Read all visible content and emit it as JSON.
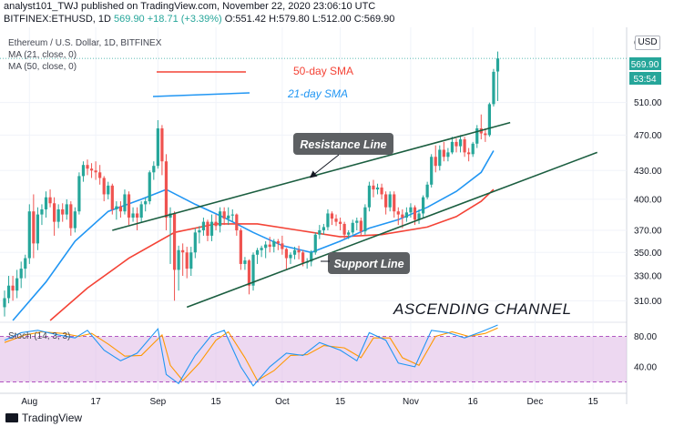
{
  "header": {
    "line1": "analyst101_TWJ published on TradingView.com, November 22, 2020 23:06:10 UTC",
    "symbol": "BITFINEX:ETHUSD, 1D",
    "last": "569.90",
    "change": "+18.71 (+3.39%)",
    "open": "O:551.42",
    "high": "H:579.80",
    "low": "L:512.00",
    "close": "C:569.90"
  },
  "legend": {
    "title": "Ethereum / U.S. Dollar, 1D, BITFINEX",
    "ma21": "MA (21, close, 0)",
    "ma50": "MA (50, close, 0)",
    "sma50_label": "50-day SMA",
    "sma21_label": "21-day SMA"
  },
  "annotations": {
    "resistance": "Resistance Line",
    "support": "Support Line",
    "channel": "ASCENDING CHANNEL"
  },
  "price_badge": {
    "price": "569.90",
    "countdown": "53:54",
    "currency": "USD"
  },
  "footer": {
    "brand": "TradingView"
  },
  "colors": {
    "up": "#26a69a",
    "down": "#ef5350",
    "sma21": "#2196f3",
    "sma50": "#f44336",
    "channel": "#1b5e40",
    "stoch_k": "#2196f3",
    "stoch_d": "#ff9800",
    "stoch_band": "#e1bee7"
  },
  "chart_data": [
    {
      "type": "candlestick",
      "title": "Ethereum / U.S. Dollar, 1D, BITFINEX",
      "y_scale": "log",
      "ylim": [
        295,
        605
      ],
      "y_ticks": [
        310,
        330,
        350,
        370,
        400,
        430,
        470,
        510
      ],
      "x_ticks": [
        "Aug",
        "17",
        "Sep",
        "15",
        "Oct",
        "15",
        "Nov",
        "16",
        "Dec",
        "15"
      ],
      "x_tick_dates": [
        "2020-08-01",
        "2020-08-17",
        "2020-09-01",
        "2020-09-15",
        "2020-10-01",
        "2020-10-15",
        "2020-11-01",
        "2020-11-16",
        "2020-12-01",
        "2020-12-15"
      ],
      "x_range": [
        "2020-07-26",
        "2020-12-22"
      ],
      "grid": true,
      "ohlc": [
        [
          "2020-07-26",
          305,
          318,
          298,
          312
        ],
        [
          "2020-07-27",
          312,
          330,
          308,
          322
        ],
        [
          "2020-07-28",
          322,
          330,
          310,
          318
        ],
        [
          "2020-07-29",
          318,
          335,
          312,
          328
        ],
        [
          "2020-07-30",
          328,
          342,
          320,
          336
        ],
        [
          "2020-07-31",
          336,
          348,
          328,
          345
        ],
        [
          "2020-08-01",
          345,
          395,
          340,
          388
        ],
        [
          "2020-08-02",
          388,
          405,
          345,
          358
        ],
        [
          "2020-08-03",
          358,
          392,
          352,
          385
        ],
        [
          "2020-08-04",
          385,
          395,
          375,
          390
        ],
        [
          "2020-08-05",
          390,
          408,
          382,
          402
        ],
        [
          "2020-08-06",
          402,
          410,
          392,
          396
        ],
        [
          "2020-08-07",
          396,
          402,
          365,
          378
        ],
        [
          "2020-08-08",
          378,
          395,
          372,
          390
        ],
        [
          "2020-08-09",
          390,
          396,
          378,
          385
        ],
        [
          "2020-08-10",
          385,
          400,
          380,
          395
        ],
        [
          "2020-08-11",
          395,
          398,
          365,
          372
        ],
        [
          "2020-08-12",
          372,
          392,
          368,
          388
        ],
        [
          "2020-08-13",
          388,
          428,
          385,
          424
        ],
        [
          "2020-08-14",
          424,
          440,
          418,
          436
        ],
        [
          "2020-08-15",
          436,
          442,
          425,
          432
        ],
        [
          "2020-08-16",
          432,
          438,
          422,
          430
        ],
        [
          "2020-08-17",
          430,
          440,
          420,
          428
        ],
        [
          "2020-08-18",
          428,
          436,
          415,
          422
        ],
        [
          "2020-08-19",
          422,
          424,
          398,
          405
        ],
        [
          "2020-08-20",
          405,
          418,
          400,
          414
        ],
        [
          "2020-08-21",
          414,
          416,
          385,
          390
        ],
        [
          "2020-08-22",
          390,
          398,
          380,
          393
        ],
        [
          "2020-08-23",
          393,
          398,
          382,
          388
        ],
        [
          "2020-08-24",
          388,
          410,
          385,
          405
        ],
        [
          "2020-08-25",
          405,
          408,
          375,
          382
        ],
        [
          "2020-08-26",
          382,
          392,
          378,
          386
        ],
        [
          "2020-08-27",
          386,
          392,
          370,
          382
        ],
        [
          "2020-08-28",
          382,
          398,
          378,
          395
        ],
        [
          "2020-08-29",
          395,
          402,
          388,
          398
        ],
        [
          "2020-08-30",
          398,
          430,
          395,
          428
        ],
        [
          "2020-08-31",
          428,
          440,
          420,
          435
        ],
        [
          "2020-09-01",
          435,
          488,
          432,
          478
        ],
        [
          "2020-09-02",
          478,
          482,
          425,
          440
        ],
        [
          "2020-09-03",
          440,
          448,
          370,
          382
        ],
        [
          "2020-09-04",
          382,
          392,
          340,
          386
        ],
        [
          "2020-09-05",
          386,
          388,
          310,
          335
        ],
        [
          "2020-09-06",
          335,
          356,
          318,
          352
        ],
        [
          "2020-09-07",
          352,
          358,
          330,
          350
        ],
        [
          "2020-09-08",
          350,
          355,
          328,
          336
        ],
        [
          "2020-09-09",
          336,
          355,
          330,
          350
        ],
        [
          "2020-09-10",
          350,
          372,
          345,
          368
        ],
        [
          "2020-09-11",
          368,
          374,
          358,
          370
        ],
        [
          "2020-09-12",
          370,
          382,
          365,
          378
        ],
        [
          "2020-09-13",
          378,
          380,
          360,
          365
        ],
        [
          "2020-09-14",
          365,
          385,
          360,
          378
        ],
        [
          "2020-09-15",
          378,
          385,
          370,
          374
        ],
        [
          "2020-09-16",
          374,
          392,
          368,
          388
        ],
        [
          "2020-09-17",
          388,
          392,
          375,
          381
        ],
        [
          "2020-09-18",
          381,
          392,
          375,
          384
        ],
        [
          "2020-09-19",
          384,
          390,
          378,
          385
        ],
        [
          "2020-09-20",
          385,
          386,
          365,
          370
        ],
        [
          "2020-09-21",
          370,
          372,
          335,
          340
        ],
        [
          "2020-09-22",
          340,
          346,
          335,
          343
        ],
        [
          "2020-09-23",
          343,
          344,
          315,
          322
        ],
        [
          "2020-09-24",
          322,
          350,
          318,
          348
        ],
        [
          "2020-09-25",
          348,
          354,
          340,
          352
        ],
        [
          "2020-09-26",
          352,
          356,
          346,
          354
        ],
        [
          "2020-09-27",
          354,
          360,
          345,
          357
        ],
        [
          "2020-09-28",
          357,
          364,
          350,
          355
        ],
        [
          "2020-09-29",
          355,
          362,
          350,
          360
        ],
        [
          "2020-09-30",
          360,
          362,
          352,
          358
        ],
        [
          "2020-10-01",
          358,
          365,
          348,
          353
        ],
        [
          "2020-10-02",
          353,
          354,
          335,
          345
        ],
        [
          "2020-10-03",
          345,
          350,
          340,
          348
        ],
        [
          "2020-10-04",
          348,
          355,
          344,
          352
        ],
        [
          "2020-10-05",
          352,
          356,
          344,
          350
        ],
        [
          "2020-10-06",
          350,
          352,
          338,
          341
        ],
        [
          "2020-10-07",
          341,
          345,
          336,
          342
        ],
        [
          "2020-10-08",
          342,
          352,
          338,
          350
        ],
        [
          "2020-10-09",
          350,
          368,
          348,
          366
        ],
        [
          "2020-10-10",
          366,
          375,
          362,
          370
        ],
        [
          "2020-10-11",
          370,
          376,
          366,
          373
        ],
        [
          "2020-10-12",
          373,
          390,
          370,
          386
        ],
        [
          "2020-10-13",
          386,
          388,
          375,
          381
        ],
        [
          "2020-10-14",
          381,
          385,
          374,
          378
        ],
        [
          "2020-10-15",
          378,
          382,
          370,
          376
        ],
        [
          "2020-10-16",
          376,
          378,
          362,
          366
        ],
        [
          "2020-10-17",
          366,
          370,
          362,
          368
        ],
        [
          "2020-10-18",
          368,
          380,
          366,
          377
        ],
        [
          "2020-10-19",
          377,
          382,
          370,
          379
        ],
        [
          "2020-10-20",
          379,
          382,
          365,
          369
        ],
        [
          "2020-10-21",
          369,
          395,
          366,
          392
        ],
        [
          "2020-10-22",
          392,
          418,
          388,
          414
        ],
        [
          "2020-10-23",
          414,
          420,
          402,
          410
        ],
        [
          "2020-10-24",
          410,
          416,
          405,
          412
        ],
        [
          "2020-10-25",
          412,
          416,
          400,
          405
        ],
        [
          "2020-10-26",
          405,
          408,
          385,
          392
        ],
        [
          "2020-10-27",
          392,
          408,
          388,
          405
        ],
        [
          "2020-10-28",
          405,
          408,
          382,
          388
        ],
        [
          "2020-10-29",
          388,
          392,
          375,
          385
        ],
        [
          "2020-10-30",
          385,
          390,
          372,
          382
        ],
        [
          "2020-10-31",
          382,
          392,
          378,
          387
        ],
        [
          "2020-11-01",
          387,
          396,
          382,
          392
        ],
        [
          "2020-11-02",
          392,
          394,
          375,
          380
        ],
        [
          "2020-11-03",
          380,
          390,
          376,
          386
        ],
        [
          "2020-11-04",
          386,
          404,
          382,
          402
        ],
        [
          "2020-11-05",
          402,
          418,
          400,
          415
        ],
        [
          "2020-11-06",
          415,
          448,
          412,
          445
        ],
        [
          "2020-11-07",
          445,
          458,
          428,
          435
        ],
        [
          "2020-11-08",
          435,
          458,
          430,
          453
        ],
        [
          "2020-11-09",
          453,
          462,
          440,
          445
        ],
        [
          "2020-11-10",
          445,
          455,
          440,
          450
        ],
        [
          "2020-11-11",
          450,
          468,
          448,
          462
        ],
        [
          "2020-11-12",
          462,
          466,
          450,
          457
        ],
        [
          "2020-11-13",
          457,
          470,
          450,
          465
        ],
        [
          "2020-11-14",
          465,
          468,
          445,
          450
        ],
        [
          "2020-11-15",
          450,
          455,
          440,
          448
        ],
        [
          "2020-11-16",
          448,
          462,
          445,
          460
        ],
        [
          "2020-11-17",
          460,
          482,
          455,
          478
        ],
        [
          "2020-11-18",
          478,
          495,
          465,
          472
        ],
        [
          "2020-11-19",
          472,
          478,
          462,
          470
        ],
        [
          "2020-11-20",
          470,
          510,
          468,
          508
        ],
        [
          "2020-11-21",
          508,
          555,
          505,
          551
        ],
        [
          "2020-11-22",
          551.42,
          579.8,
          512,
          569.9
        ]
      ],
      "series": [
        {
          "name": "MA (21, close, 0)",
          "x": [
            "2020-07-28",
            "2020-08-05",
            "2020-08-12",
            "2020-08-20",
            "2020-08-28",
            "2020-09-03",
            "2020-09-10",
            "2020-09-17",
            "2020-09-24",
            "2020-10-01",
            "2020-10-08",
            "2020-10-15",
            "2020-10-22",
            "2020-10-29",
            "2020-11-05",
            "2020-11-12",
            "2020-11-18",
            "2020-11-21"
          ],
          "values": [
            295,
            325,
            360,
            388,
            400,
            410,
            395,
            382,
            368,
            356,
            350,
            360,
            372,
            380,
            392,
            408,
            428,
            452
          ]
        },
        {
          "name": "MA (50, close, 0)",
          "x": [
            "2020-08-06",
            "2020-08-15",
            "2020-08-25",
            "2020-09-05",
            "2020-09-15",
            "2020-09-25",
            "2020-10-05",
            "2020-10-15",
            "2020-10-25",
            "2020-11-05",
            "2020-11-12",
            "2020-11-18",
            "2020-11-21"
          ],
          "values": [
            295,
            320,
            345,
            368,
            376,
            376,
            370,
            364,
            366,
            373,
            383,
            398,
            410
          ]
        },
        {
          "name": "Resistance Line",
          "x": [
            "2020-08-21",
            "2020-11-25"
          ],
          "values": [
            370,
            485
          ]
        },
        {
          "name": "Support Line",
          "x": [
            "2020-09-08",
            "2020-12-16"
          ],
          "values": [
            305,
            450
          ]
        }
      ]
    },
    {
      "type": "line",
      "title": "Stoch (14, 3, 3)",
      "ylim": [
        10,
        95
      ],
      "y_ticks": [
        40,
        80
      ],
      "band": [
        20,
        80
      ],
      "x_ticks": [
        "Aug",
        "17",
        "Sep",
        "15",
        "Oct",
        "15",
        "Nov",
        "16",
        "Dec",
        "15"
      ],
      "x_tick_dates": [
        "2020-08-01",
        "2020-08-17",
        "2020-09-01",
        "2020-09-15",
        "2020-10-01",
        "2020-10-15",
        "2020-11-01",
        "2020-11-16",
        "2020-12-01",
        "2020-12-15"
      ],
      "series": [
        {
          "name": "%K",
          "x": [
            "2020-07-26",
            "2020-07-30",
            "2020-08-03",
            "2020-08-08",
            "2020-08-12",
            "2020-08-15",
            "2020-08-19",
            "2020-08-23",
            "2020-08-27",
            "2020-09-01",
            "2020-09-03",
            "2020-09-06",
            "2020-09-10",
            "2020-09-14",
            "2020-09-17",
            "2020-09-21",
            "2020-09-24",
            "2020-09-28",
            "2020-10-02",
            "2020-10-06",
            "2020-10-10",
            "2020-10-15",
            "2020-10-19",
            "2020-10-22",
            "2020-10-26",
            "2020-10-29",
            "2020-11-02",
            "2020-11-06",
            "2020-11-10",
            "2020-11-14",
            "2020-11-18",
            "2020-11-22"
          ],
          "values": [
            75,
            85,
            88,
            82,
            78,
            88,
            62,
            48,
            58,
            90,
            30,
            18,
            55,
            82,
            88,
            40,
            15,
            40,
            58,
            55,
            72,
            62,
            48,
            85,
            75,
            45,
            40,
            88,
            85,
            78,
            86,
            95
          ]
        },
        {
          "name": "%D",
          "x": [
            "2020-07-26",
            "2020-07-31",
            "2020-08-04",
            "2020-08-09",
            "2020-08-13",
            "2020-08-16",
            "2020-08-20",
            "2020-08-24",
            "2020-08-28",
            "2020-09-02",
            "2020-09-04",
            "2020-09-07",
            "2020-09-11",
            "2020-09-15",
            "2020-09-18",
            "2020-09-22",
            "2020-09-25",
            "2020-09-29",
            "2020-10-03",
            "2020-10-07",
            "2020-10-11",
            "2020-10-16",
            "2020-10-20",
            "2020-10-23",
            "2020-10-27",
            "2020-10-30",
            "2020-11-03",
            "2020-11-07",
            "2020-11-11",
            "2020-11-15",
            "2020-11-19",
            "2020-11-22"
          ],
          "values": [
            72,
            82,
            86,
            84,
            80,
            84,
            70,
            54,
            55,
            82,
            42,
            22,
            45,
            75,
            86,
            52,
            22,
            35,
            55,
            56,
            68,
            65,
            52,
            78,
            78,
            52,
            42,
            80,
            86,
            80,
            84,
            91
          ]
        }
      ]
    }
  ]
}
